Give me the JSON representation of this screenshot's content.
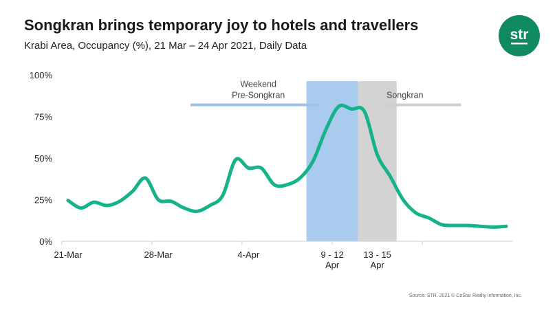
{
  "header": {
    "title": "Songkran brings temporary joy to hotels and travellers",
    "subtitle": "Krabi Area, Occupancy (%), 21 Mar – 24 Apr 2021, Daily Data"
  },
  "logo": {
    "text": "str",
    "color": "#0f8a63"
  },
  "source": "Source: STR. 2021 © CoStar Realty Information, Inc.",
  "chart_data": {
    "type": "line",
    "title": "Songkran brings temporary joy to hotels and travellers",
    "subtitle": "Krabi Area, Occupancy (%), 21 Mar – 24 Apr 2021, Daily Data",
    "ylim": [
      0,
      100
    ],
    "y_ticks": [
      {
        "value": 0,
        "label": "0%"
      },
      {
        "value": 25,
        "label": "25%"
      },
      {
        "value": 50,
        "label": "50%"
      },
      {
        "value": 75,
        "label": "75%"
      },
      {
        "value": 100,
        "label": "100%"
      }
    ],
    "x_range": [
      "2021-03-21",
      "2021-04-24"
    ],
    "x_ticks": [
      {
        "date": "2021-03-21",
        "label": "21-Mar"
      },
      {
        "date": "2021-03-28",
        "label": "28-Mar"
      },
      {
        "date": "2021-04-04",
        "label": "4-Apr"
      }
    ],
    "x_range_labels": [
      {
        "date": "2021-04-10.5",
        "lines": [
          "9 - 12",
          "Apr"
        ]
      },
      {
        "date": "2021-04-14",
        "lines": [
          "13 - 15",
          "Apr"
        ]
      }
    ],
    "grid": false,
    "series": [
      {
        "color": "#16b38a",
        "points": [
          {
            "x": "2021-03-21",
            "y": 24.5
          },
          {
            "x": "2021-03-22",
            "y": 20
          },
          {
            "x": "2021-03-23",
            "y": 23.5
          },
          {
            "x": "2021-03-24",
            "y": 21.5
          },
          {
            "x": "2021-03-25",
            "y": 24
          },
          {
            "x": "2021-03-26",
            "y": 30
          },
          {
            "x": "2021-03-27",
            "y": 38
          },
          {
            "x": "2021-03-28",
            "y": 25
          },
          {
            "x": "2021-03-29",
            "y": 24
          },
          {
            "x": "2021-03-30",
            "y": 20
          },
          {
            "x": "2021-03-31",
            "y": 18
          },
          {
            "x": "2021-04-01",
            "y": 21.5
          },
          {
            "x": "2021-04-02",
            "y": 27.5
          },
          {
            "x": "2021-04-03",
            "y": 49
          },
          {
            "x": "2021-04-04",
            "y": 44
          },
          {
            "x": "2021-04-05",
            "y": 44
          },
          {
            "x": "2021-04-06",
            "y": 34
          },
          {
            "x": "2021-04-07",
            "y": 34
          },
          {
            "x": "2021-04-08",
            "y": 38
          },
          {
            "x": "2021-04-09",
            "y": 48
          },
          {
            "x": "2021-04-10",
            "y": 67
          },
          {
            "x": "2021-04-11",
            "y": 81
          },
          {
            "x": "2021-04-12",
            "y": 79.5
          },
          {
            "x": "2021-04-13",
            "y": 78
          },
          {
            "x": "2021-04-14",
            "y": 52
          },
          {
            "x": "2021-04-15",
            "y": 39
          },
          {
            "x": "2021-04-16",
            "y": 25
          },
          {
            "x": "2021-04-17",
            "y": 17
          },
          {
            "x": "2021-04-18",
            "y": 14
          },
          {
            "x": "2021-04-19",
            "y": 10
          },
          {
            "x": "2021-04-20",
            "y": 9.5
          },
          {
            "x": "2021-04-21",
            "y": 9.5
          },
          {
            "x": "2021-04-22",
            "y": 9
          },
          {
            "x": "2021-04-23",
            "y": 8.5
          },
          {
            "x": "2021-04-24",
            "y": 9
          }
        ]
      }
    ],
    "shaded_periods": [
      {
        "start": "2021-04-09",
        "end": "2021-04-12",
        "color": "#a9cbee"
      },
      {
        "start": "2021-04-13",
        "end": "2021-04-15",
        "color": "#d3d3d3"
      }
    ],
    "annotations": [
      {
        "lines": [
          "Weekend",
          "Pre-Songkran"
        ],
        "start": "2021-03-31",
        "end": "2021-04-09",
        "y": 82,
        "color": "#9ec2e6"
      },
      {
        "lines": [
          "Songkran"
        ],
        "start": "2021-04-15",
        "end": "2021-04-20",
        "y": 82,
        "color": "#cfcfcf"
      }
    ]
  }
}
